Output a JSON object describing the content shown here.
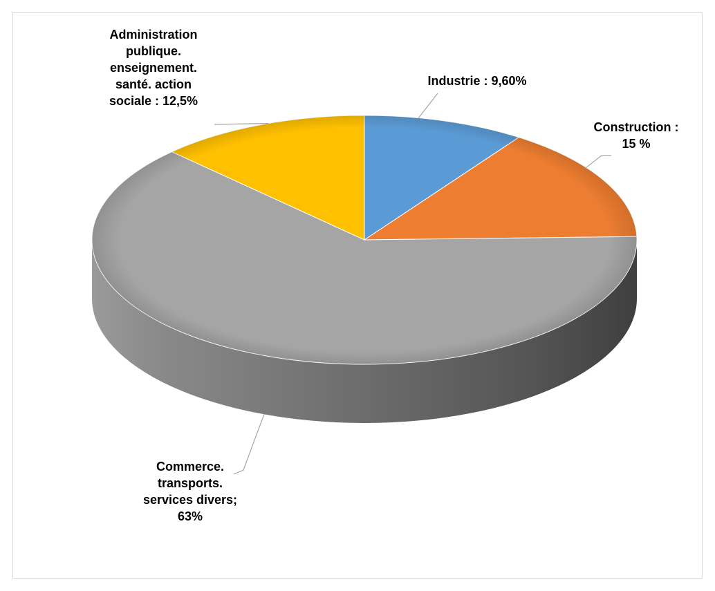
{
  "chart_data": {
    "type": "pie",
    "style": "3d",
    "title": "",
    "legend": "none",
    "slices": [
      {
        "name": "Industrie",
        "value": 9.6,
        "color": "#5b9bd5",
        "label_lines": [
          "Industrie : 9,60%"
        ]
      },
      {
        "name": "Construction",
        "value": 15,
        "color": "#ed7d31",
        "label_lines": [
          "Construction :",
          "15 %"
        ]
      },
      {
        "name": "Commerce. transports. services divers",
        "value": 63,
        "color": "#a5a5a5",
        "label_lines": [
          "Commerce.",
          "transports.",
          "services divers;",
          "63%"
        ]
      },
      {
        "name": "Administration publique. enseignement. santé. action sociale",
        "value": 12.5,
        "color": "#ffc000",
        "label_lines": [
          "Administration",
          "publique.",
          "enseignement.",
          "santé. action",
          "sociale : 12,5%"
        ]
      }
    ]
  }
}
